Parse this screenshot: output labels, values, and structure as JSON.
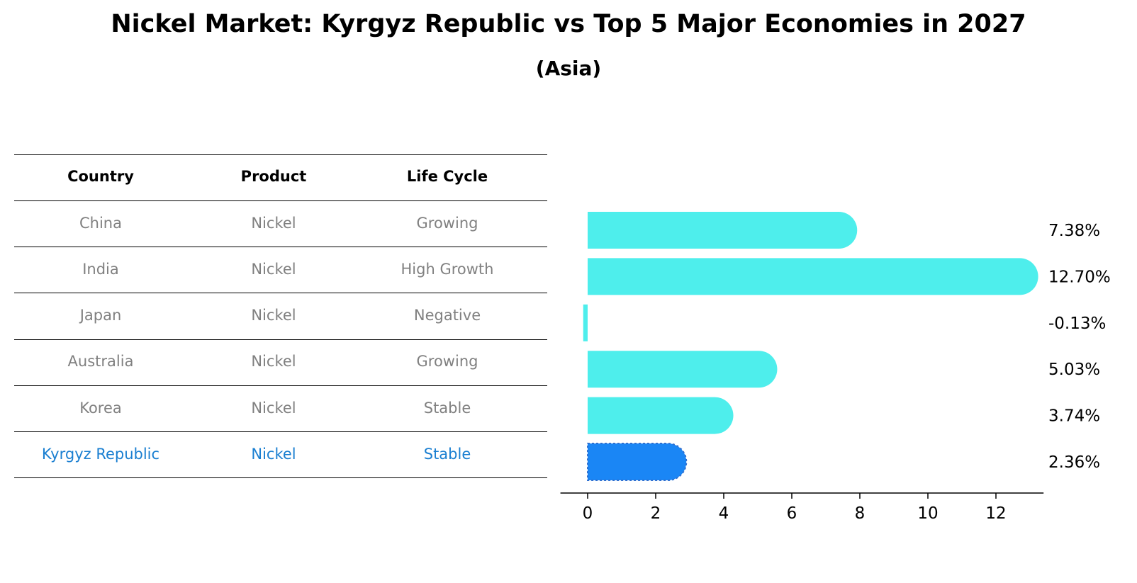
{
  "title": "Nickel Market: Kyrgyz Republic vs Top 5 Major Economies in 2027",
  "subtitle": "(Asia)",
  "table": {
    "headers": [
      "Country",
      "Product",
      "Life Cycle"
    ],
    "rows": [
      [
        "China",
        "Nickel",
        "Growing"
      ],
      [
        "India",
        "Nickel",
        "High Growth"
      ],
      [
        "Japan",
        "Nickel",
        "Negative"
      ],
      [
        "Australia",
        "Nickel",
        "Growing"
      ],
      [
        "Korea",
        "Nickel",
        "Stable"
      ],
      [
        "Kyrgyz Republic",
        "Nickel",
        "Stable"
      ]
    ]
  },
  "colors": {
    "bar": "#4eeeec",
    "highlight": "#1a86f5",
    "muted_text": "#808080",
    "highlight_text": "#1a7fd1"
  },
  "chart_data": {
    "type": "bar",
    "orientation": "horizontal",
    "categories": [
      "China",
      "India",
      "Japan",
      "Australia",
      "Korea",
      "Kyrgyz Republic"
    ],
    "values": [
      7.38,
      12.7,
      -0.13,
      5.03,
      3.74,
      2.36
    ],
    "labels": [
      "7.38%",
      "12.70%",
      "-0.13%",
      "5.03%",
      "3.74%",
      "2.36%"
    ],
    "highlight": "Kyrgyz Republic",
    "xticks": [
      0,
      2,
      4,
      6,
      8,
      10,
      12
    ],
    "xlim": [
      -0.8,
      13.4
    ],
    "grid": false
  }
}
